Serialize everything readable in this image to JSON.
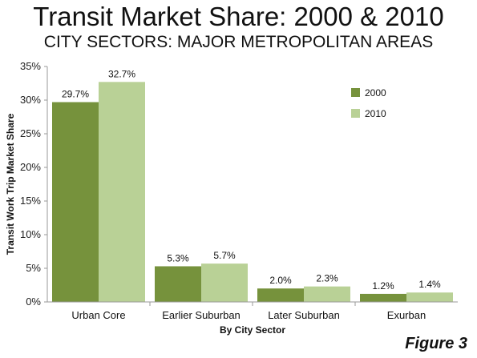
{
  "header": {
    "title": "Transit Market Share: 2000 & 2010",
    "subtitle": "CITY SECTORS: MAJOR METROPOLITAN AREAS"
  },
  "figure_label": "Figure 3",
  "chart_data": {
    "type": "bar",
    "categories": [
      "Urban Core",
      "Earlier Suburban",
      "Later Suburban",
      "Exurban"
    ],
    "series": [
      {
        "name": "2000",
        "values": [
          29.7,
          5.3,
          2.0,
          1.2
        ],
        "labels": [
          "29.7%",
          "5.3%",
          "2.0%",
          "1.2%"
        ],
        "color": "#76923c"
      },
      {
        "name": "2010",
        "values": [
          32.7,
          5.7,
          2.3,
          1.4
        ],
        "labels": [
          "32.7%",
          "5.7%",
          "2.3%",
          "1.4%"
        ],
        "color": "#b9d196"
      }
    ],
    "xlabel": "By City Sector",
    "ylabel": "Transit Work Trip Market Share",
    "ylim": [
      0,
      35
    ],
    "yticks": [
      0,
      5,
      10,
      15,
      20,
      25,
      30,
      35
    ],
    "ytick_labels": [
      "0%",
      "5%",
      "10%",
      "15%",
      "20%",
      "25%",
      "30%",
      "35%"
    ],
    "grid": false,
    "legend_position": "top-right"
  }
}
